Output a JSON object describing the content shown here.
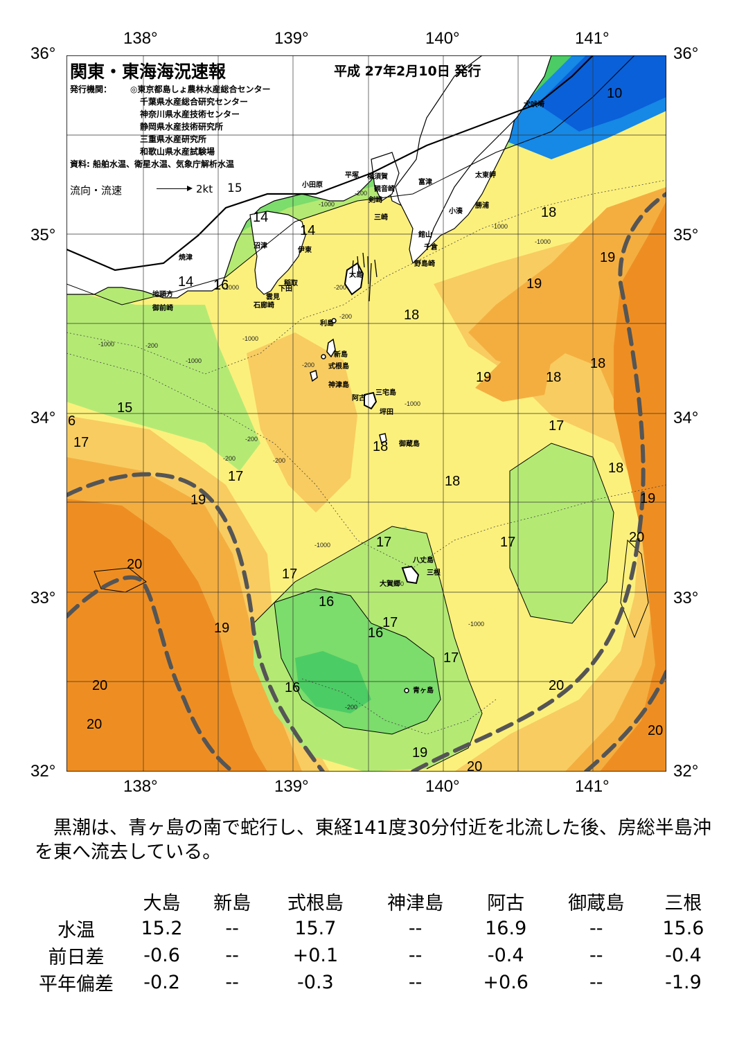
{
  "header": {
    "title": "関東・東海海況速報",
    "issued": "平成 27年2月10日 発行",
    "issuer_label": "発行機関：",
    "issuers": [
      "◎東京都島しょ農林水産総合センター",
      "千葉県水産総合研究センター",
      "神奈川県水産技術センター",
      "静岡県水産技術研究所",
      "三重県水産研究所",
      "和歌山県水産試験場"
    ],
    "source": "資料: 船舶水温、衛星水温、気象庁解析水温",
    "legend": {
      "label": "流向・流速",
      "speed": "2kt",
      "temp": "15"
    }
  },
  "map": {
    "top_lon_labels": [
      "138°",
      "139°",
      "140°",
      "141°"
    ],
    "bottom_lon_labels": [
      "138°",
      "139°",
      "140°",
      "141°"
    ],
    "lat_labels": [
      "36°",
      "35°",
      "34°",
      "33°",
      "32°"
    ],
    "colors": {
      "t10": "#0a60d8",
      "t11": "#1688e6",
      "t12": "#32b4ee",
      "t13": "#5ad8e0",
      "t14": "#78e0b0",
      "t15": "#4ccc64",
      "t16": "#7cdc6c",
      "t17": "#b4ea74",
      "t18": "#fcf07c",
      "t185": "#f8cc60",
      "t19": "#f4ae40",
      "t20": "#ee8e22",
      "land": "#ffffff",
      "kuroshio": "#555555"
    },
    "place_names": [
      {
        "name": "犬吠埼"
      },
      {
        "name": "太東岬"
      },
      {
        "name": "勝浦"
      },
      {
        "name": "小湊"
      },
      {
        "name": "富津"
      },
      {
        "name": "館山"
      },
      {
        "name": "千倉"
      },
      {
        "name": "野島崎"
      },
      {
        "name": "横須賀"
      },
      {
        "name": "観音崎"
      },
      {
        "name": "平塚"
      },
      {
        "name": "剣崎"
      },
      {
        "name": "三崎"
      },
      {
        "name": "小田原"
      },
      {
        "name": "沼津"
      },
      {
        "name": "伊東"
      },
      {
        "name": "焼津"
      },
      {
        "name": "稲取"
      },
      {
        "name": "下田"
      },
      {
        "name": "雲見"
      },
      {
        "name": "石廊崎"
      },
      {
        "name": "地頭方"
      },
      {
        "name": "御前崎"
      },
      {
        "name": "大島"
      },
      {
        "name": "利島"
      },
      {
        "name": "新島"
      },
      {
        "name": "式根島"
      },
      {
        "name": "神津島"
      },
      {
        "name": "三宅島"
      },
      {
        "name": "阿古"
      },
      {
        "name": "坪田"
      },
      {
        "name": "御蔵島"
      },
      {
        "name": "八丈島"
      },
      {
        "name": "三根"
      },
      {
        "name": "大賀郷"
      },
      {
        "name": "青ヶ島"
      }
    ],
    "temp_labels": [
      {
        "t": "10"
      },
      {
        "t": "14"
      },
      {
        "t": "14"
      },
      {
        "t": "14"
      },
      {
        "t": "16"
      },
      {
        "t": "15"
      },
      {
        "t": "6"
      },
      {
        "t": "17"
      },
      {
        "t": "17"
      },
      {
        "t": "19"
      },
      {
        "t": "18"
      },
      {
        "t": "18"
      },
      {
        "t": "18"
      },
      {
        "t": "18"
      },
      {
        "t": "19"
      },
      {
        "t": "19"
      },
      {
        "t": "19"
      },
      {
        "t": "18"
      },
      {
        "t": "17"
      },
      {
        "t": "18"
      },
      {
        "t": "19"
      },
      {
        "t": "20"
      },
      {
        "t": "17"
      },
      {
        "t": "17"
      },
      {
        "t": "18"
      },
      {
        "t": "17"
      },
      {
        "t": "20"
      },
      {
        "t": "19"
      },
      {
        "t": "16"
      },
      {
        "t": "17"
      },
      {
        "t": "16"
      },
      {
        "t": "17"
      },
      {
        "t": "16"
      },
      {
        "t": "20"
      },
      {
        "t": "20"
      },
      {
        "t": "20"
      },
      {
        "t": "20"
      },
      {
        "t": "19"
      },
      {
        "t": "20"
      }
    ],
    "depth_labels": [
      {
        "t": "-200"
      },
      {
        "t": "-1000"
      },
      {
        "t": "-1000"
      },
      {
        "t": "-200"
      },
      {
        "t": "-1000"
      },
      {
        "t": "-200"
      },
      {
        "t": "-1000"
      },
      {
        "t": "-1000"
      },
      {
        "t": "-200"
      },
      {
        "t": "-1000"
      },
      {
        "t": "-200"
      },
      {
        "t": "-200"
      },
      {
        "t": "-1000"
      },
      {
        "t": "-1000"
      },
      {
        "t": "-200"
      },
      {
        "t": "-1000"
      },
      {
        "t": "-1000"
      },
      {
        "t": "-200"
      },
      {
        "t": "-1000"
      },
      {
        "t": "-200"
      }
    ]
  },
  "summary": "　黒潮は、青ヶ島の南で蛇行し、東経141度30分付近を北流した後、房総半島沖を東へ流去している。",
  "stats": {
    "columns": [
      "大島",
      "新島",
      "式根島",
      "神津島",
      "阿古",
      "御蔵島",
      "三根"
    ],
    "rows": [
      {
        "label": "水温",
        "values": [
          "15.2",
          "--",
          "15.7",
          "--",
          "16.9",
          "--",
          "15.6"
        ]
      },
      {
        "label": "前日差",
        "values": [
          "-0.6",
          "--",
          "+0.1",
          "--",
          "-0.4",
          "--",
          "-0.4"
        ]
      },
      {
        "label": "平年偏差",
        "values": [
          "-0.2",
          "--",
          "-0.3",
          "--",
          "+0.6",
          "--",
          "-1.9"
        ]
      }
    ]
  }
}
